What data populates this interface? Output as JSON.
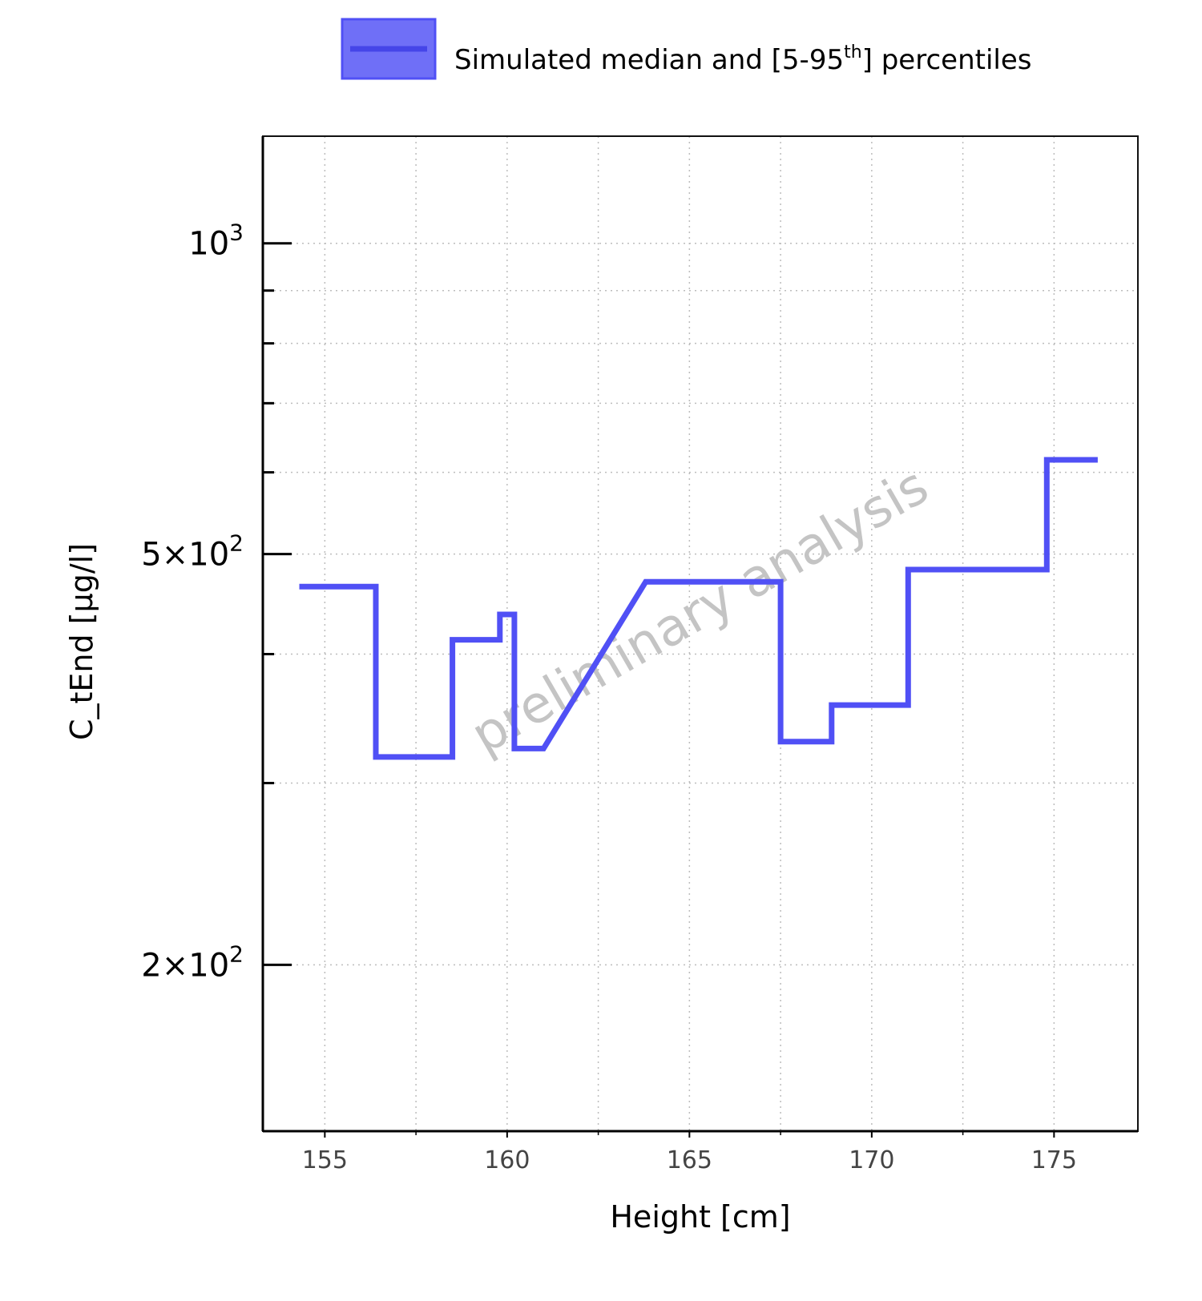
{
  "chart_data": {
    "type": "line",
    "title": "",
    "xlabel": "Height [cm]",
    "ylabel": "C_tEnd [µg/l]",
    "x_scale": "linear",
    "y_scale": "log",
    "xlim": [
      153.3,
      177.3
    ],
    "ylim": [
      138,
      1270
    ],
    "x_ticks": [
      155,
      160,
      165,
      170,
      175
    ],
    "x_tick_labels": [
      "155",
      "160",
      "165",
      "170",
      "175"
    ],
    "y_ticks_major": [
      {
        "value": 1000,
        "mantissa": "",
        "base": "10",
        "exponent": "3"
      },
      {
        "value": 500,
        "mantissa": "5",
        "base": "10",
        "exponent": "2"
      },
      {
        "value": 200,
        "mantissa": "2",
        "base": "10",
        "exponent": "2"
      }
    ],
    "y_ticks_minor": [
      300,
      400,
      600,
      700,
      800,
      900
    ],
    "grid": true,
    "legend": {
      "placement": "top-center",
      "label_main": "Simulated median and [5-95",
      "label_sup": "th",
      "label_end": "] percentiles"
    },
    "watermark": "preliminary analysis",
    "series": [
      {
        "name": "Simulated median and [5-95th] percentiles",
        "color": "#5050f5",
        "x": [
          154.3,
          156.4,
          156.4,
          158.5,
          158.5,
          159.8,
          159.8,
          160.2,
          160.2,
          161.0,
          163.8,
          167.5,
          167.5,
          168.9,
          168.9,
          171.0,
          171.0,
          174.8,
          174.8,
          176.2
        ],
        "y": [
          465,
          465,
          318,
          318,
          413,
          413,
          437,
          437,
          324,
          324,
          470,
          470,
          329,
          329,
          357,
          357,
          483,
          483,
          617,
          617
        ]
      }
    ]
  }
}
